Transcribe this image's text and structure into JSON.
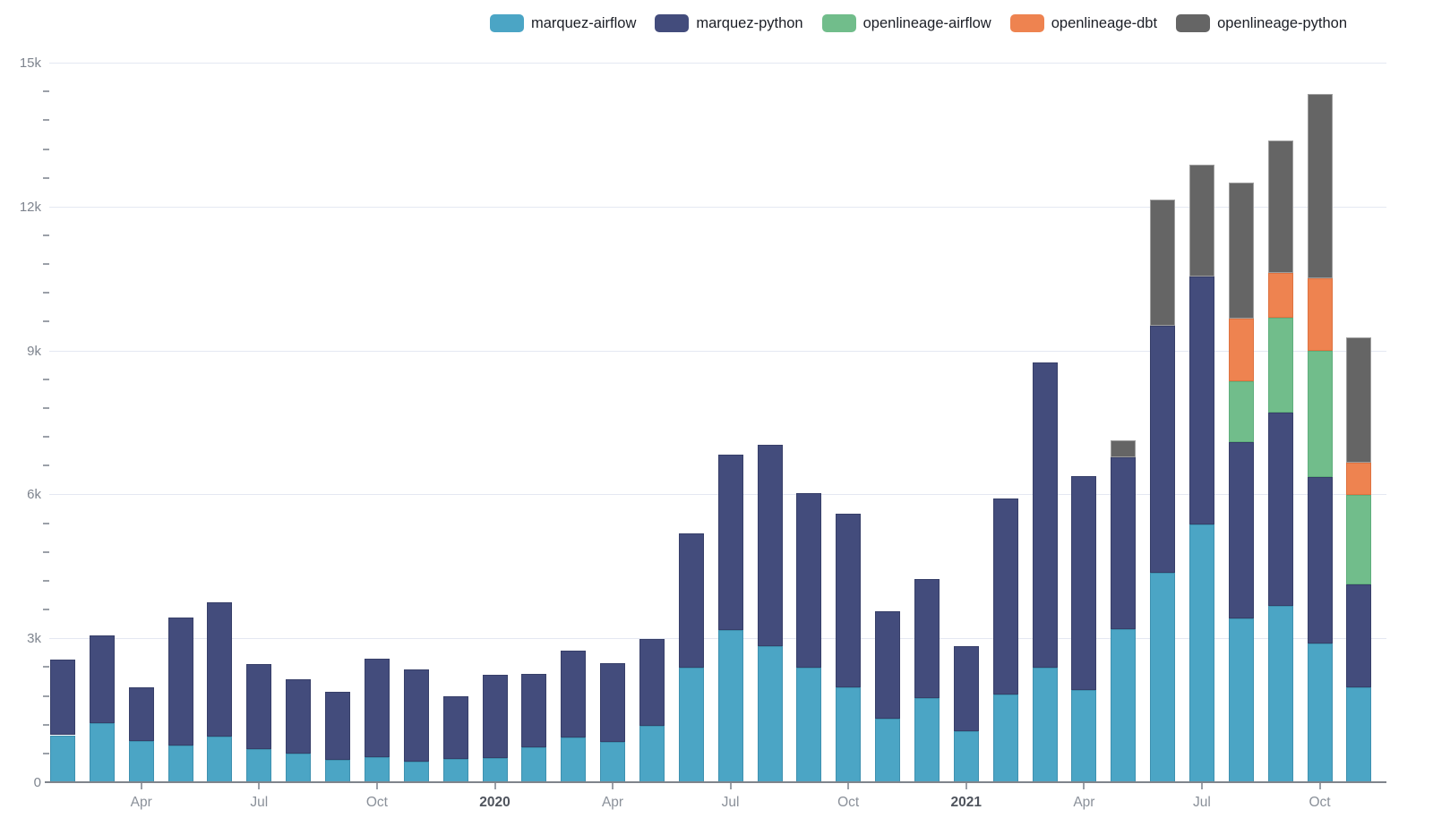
{
  "chart_data": {
    "type": "bar",
    "stacked": true,
    "title": "",
    "xlabel": "",
    "ylabel": "",
    "legend_position": "top",
    "grid": true,
    "months": [
      "Feb 2019",
      "Mar 2019",
      "Apr 2019",
      "May 2019",
      "Jun 2019",
      "Jul 2019",
      "Aug 2019",
      "Sep 2019",
      "Oct 2019",
      "Nov 2019",
      "Dec 2019",
      "Jan 2020",
      "Feb 2020",
      "Mar 2020",
      "Apr 2020",
      "May 2020",
      "Jun 2020",
      "Jul 2020",
      "Aug 2020",
      "Sep 2020",
      "Oct 2020",
      "Nov 2020",
      "Dec 2020",
      "Jan 2021",
      "Feb 2021",
      "Mar 2021",
      "Apr 2021",
      "May 2021",
      "Jun 2021",
      "Jul 2021",
      "Aug 2021",
      "Sep 2021",
      "Oct 2021",
      "Nov 2021"
    ],
    "series": [
      {
        "name": "marquez-airflow",
        "color": "#4BA5C5",
        "border_color": "#3E90AF",
        "values": [
          980,
          1240,
          860,
          760,
          950,
          690,
          590,
          460,
          520,
          430,
          480,
          500,
          730,
          930,
          840,
          1180,
          2380,
          3170,
          2840,
          2380,
          1970,
          1320,
          1750,
          1070,
          1830,
          2390,
          1920,
          3190,
          4370,
          5380,
          3420,
          3670,
          2890,
          1970
        ]
      },
      {
        "name": "marquez-python",
        "color": "#434C7C",
        "border_color": "#373F69",
        "values": [
          1570,
          1820,
          1120,
          2670,
          2810,
          1770,
          1550,
          1420,
          2050,
          1930,
          1310,
          1740,
          1520,
          1820,
          1650,
          1800,
          2810,
          3660,
          4200,
          3650,
          3620,
          2240,
          2490,
          1770,
          4080,
          6370,
          4470,
          3580,
          5140,
          5160,
          3670,
          4040,
          3470,
          2150
        ]
      },
      {
        "name": "openlineage-airflow",
        "color": "#71BD8B",
        "border_color": "#5FAE7C",
        "values": [
          0,
          0,
          0,
          0,
          0,
          0,
          0,
          0,
          0,
          0,
          0,
          0,
          0,
          0,
          0,
          0,
          0,
          0,
          0,
          0,
          0,
          0,
          0,
          0,
          0,
          0,
          0,
          0,
          0,
          0,
          1260,
          1970,
          2630,
          1870
        ]
      },
      {
        "name": "openlineage-dbt",
        "color": "#EE8350",
        "border_color": "#DE7240",
        "values": [
          0,
          0,
          0,
          0,
          0,
          0,
          0,
          0,
          0,
          0,
          0,
          0,
          0,
          0,
          0,
          0,
          0,
          0,
          0,
          0,
          0,
          0,
          0,
          0,
          0,
          0,
          0,
          0,
          0,
          0,
          1310,
          940,
          1520,
          670
        ]
      },
      {
        "name": "openlineage-python",
        "color": "#656565",
        "border_color": "#9E9E9E",
        "values": [
          0,
          0,
          0,
          0,
          0,
          0,
          0,
          0,
          0,
          0,
          0,
          0,
          0,
          0,
          0,
          0,
          0,
          0,
          0,
          0,
          0,
          0,
          0,
          0,
          0,
          0,
          0,
          350,
          2630,
          2330,
          2850,
          2760,
          3840,
          2620
        ]
      }
    ],
    "x_ticks": [
      {
        "index": 2,
        "label": "Apr",
        "bold": false
      },
      {
        "index": 5,
        "label": "Jul",
        "bold": false
      },
      {
        "index": 8,
        "label": "Oct",
        "bold": false
      },
      {
        "index": 11,
        "label": "2020",
        "bold": true
      },
      {
        "index": 14,
        "label": "Apr",
        "bold": false
      },
      {
        "index": 17,
        "label": "Jul",
        "bold": false
      },
      {
        "index": 20,
        "label": "Oct",
        "bold": false
      },
      {
        "index": 23,
        "label": "2021",
        "bold": true
      },
      {
        "index": 26,
        "label": "Apr",
        "bold": false
      },
      {
        "index": 29,
        "label": "Jul",
        "bold": false
      },
      {
        "index": 32,
        "label": "Oct",
        "bold": false
      }
    ],
    "y_axis": {
      "min": 0,
      "max": 15000,
      "major_step": 3000,
      "minor_step": 600,
      "labels": [
        "0",
        "3k",
        "6k",
        "9k",
        "12k",
        "15k"
      ]
    }
  }
}
